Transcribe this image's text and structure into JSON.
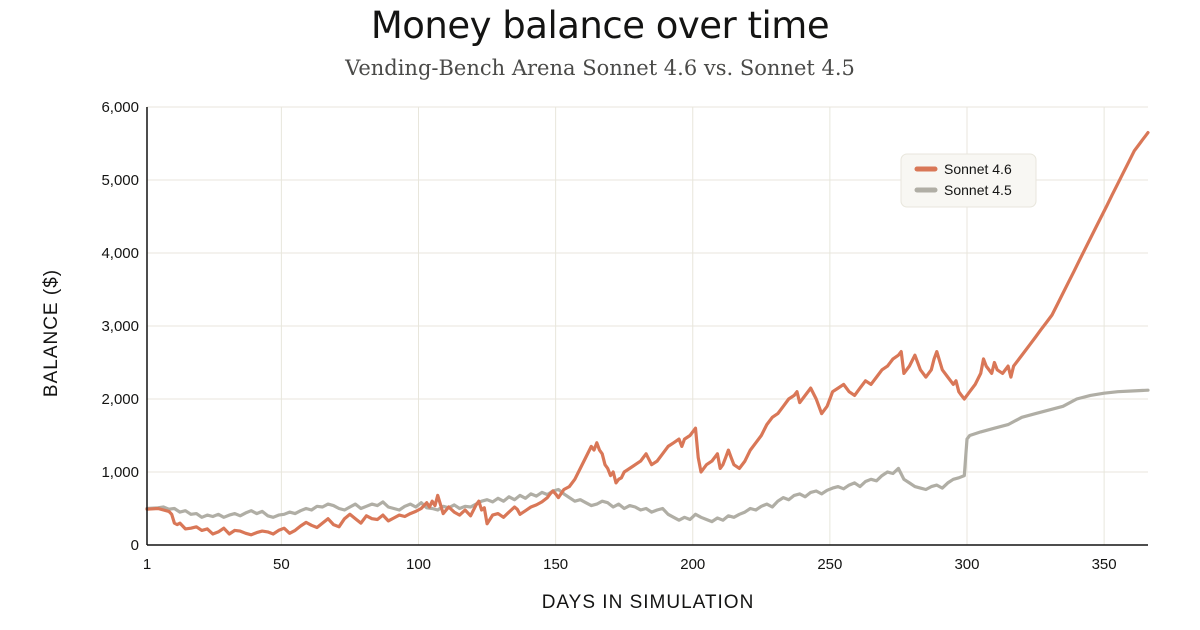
{
  "chart_data": {
    "type": "line",
    "title": "Money balance over time",
    "subtitle": "Vending-Bench Arena Sonnet 4.6 vs. Sonnet 4.5",
    "xlabel": "DAYS IN SIMULATION",
    "ylabel": "BALANCE ($)",
    "xlim": [
      1,
      366
    ],
    "ylim": [
      0,
      6000
    ],
    "x_ticks": [
      1,
      50,
      100,
      150,
      200,
      250,
      300,
      350
    ],
    "y_ticks": [
      0,
      1000,
      2000,
      3000,
      4000,
      5000,
      6000
    ],
    "y_tick_labels": [
      "0",
      "1,000",
      "2,000",
      "3,000",
      "4,000",
      "5,000",
      "6,000"
    ],
    "grid": true,
    "legend_position": "top-right",
    "series": [
      {
        "name": "Sonnet 4.6",
        "color": "#d97757",
        "x": [
          1,
          5,
          7,
          9,
          10,
          11,
          12,
          13,
          15,
          17,
          19,
          21,
          23,
          25,
          27,
          29,
          31,
          33,
          35,
          37,
          39,
          41,
          43,
          45,
          47,
          49,
          51,
          53,
          55,
          57,
          59,
          61,
          63,
          65,
          67,
          69,
          71,
          73,
          75,
          77,
          79,
          81,
          83,
          85,
          87,
          89,
          91,
          93,
          95,
          97,
          99,
          101,
          103,
          104,
          105,
          106,
          107,
          109,
          111,
          113,
          115,
          117,
          119,
          121,
          122,
          123,
          124,
          125,
          127,
          129,
          131,
          133,
          135,
          136,
          137,
          139,
          141,
          143,
          145,
          147,
          148,
          149,
          150,
          151,
          153,
          155,
          157,
          159,
          161,
          163,
          164,
          165,
          166,
          167,
          168,
          169,
          170,
          171,
          172,
          173,
          174,
          175,
          177,
          179,
          181,
          182,
          183,
          185,
          187,
          189,
          191,
          193,
          195,
          196,
          197,
          199,
          201,
          202,
          203,
          204,
          205,
          207,
          209,
          210,
          211,
          212,
          213,
          214,
          215,
          217,
          219,
          221,
          223,
          225,
          227,
          229,
          231,
          233,
          235,
          237,
          238,
          239,
          241,
          243,
          245,
          247,
          249,
          250,
          251,
          253,
          255,
          257,
          259,
          261,
          263,
          265,
          267,
          269,
          271,
          273,
          275,
          276,
          277,
          279,
          281,
          283,
          285,
          287,
          288,
          289,
          291,
          293,
          295,
          296,
          297,
          298,
          299,
          301,
          303,
          305,
          306,
          307,
          309,
          310,
          311,
          313,
          315,
          316,
          317,
          319,
          321,
          323,
          325,
          327,
          329,
          331,
          333,
          335,
          337,
          339,
          341,
          343,
          345,
          347,
          349,
          351,
          353,
          355,
          357,
          359,
          361,
          363,
          364,
          365,
          366
        ],
        "values": [
          490,
          500,
          480,
          460,
          420,
          300,
          280,
          300,
          220,
          230,
          250,
          200,
          220,
          150,
          180,
          230,
          150,
          200,
          190,
          160,
          140,
          170,
          190,
          180,
          150,
          200,
          230,
          160,
          200,
          260,
          310,
          270,
          240,
          300,
          360,
          280,
          250,
          360,
          420,
          360,
          300,
          400,
          360,
          350,
          410,
          330,
          370,
          410,
          390,
          430,
          460,
          500,
          580,
          520,
          600,
          540,
          680,
          430,
          520,
          450,
          410,
          480,
          400,
          550,
          600,
          480,
          510,
          290,
          410,
          430,
          380,
          450,
          520,
          490,
          420,
          470,
          520,
          550,
          590,
          650,
          700,
          740,
          700,
          650,
          760,
          800,
          900,
          1050,
          1200,
          1350,
          1300,
          1400,
          1300,
          1250,
          1100,
          1050,
          950,
          1000,
          850,
          900,
          920,
          1000,
          1050,
          1100,
          1150,
          1200,
          1250,
          1100,
          1150,
          1250,
          1350,
          1400,
          1450,
          1350,
          1450,
          1500,
          1600,
          1200,
          1000,
          1050,
          1100,
          1150,
          1250,
          1050,
          1100,
          1200,
          1300,
          1200,
          1100,
          1050,
          1150,
          1300,
          1400,
          1500,
          1650,
          1750,
          1800,
          1900,
          2000,
          2050,
          2100,
          1950,
          2050,
          2150,
          2000,
          1800,
          1900,
          2000,
          2100,
          2150,
          2200,
          2100,
          2050,
          2150,
          2250,
          2200,
          2300,
          2400,
          2450,
          2550,
          2600,
          2650,
          2350,
          2450,
          2600,
          2400,
          2300,
          2400,
          2550,
          2650,
          2400,
          2300,
          2200,
          2250,
          2100,
          2050,
          2000,
          2100,
          2200,
          2350,
          2550,
          2450,
          2350,
          2500,
          2400,
          2350,
          2450,
          2300,
          2450,
          2550,
          2650,
          2750,
          2850,
          2950,
          3050,
          3150,
          3300,
          3450,
          3600,
          3750,
          3900,
          4050,
          4200,
          4350,
          4500,
          4650,
          4800,
          4950,
          5100,
          5250,
          5400,
          5500,
          5550,
          5600,
          5650
        ]
      },
      {
        "name": "Sonnet 4.5",
        "color": "#b0aea5",
        "x": [
          1,
          5,
          7,
          9,
          11,
          13,
          15,
          17,
          19,
          21,
          23,
          25,
          27,
          29,
          31,
          33,
          35,
          37,
          39,
          41,
          43,
          45,
          47,
          49,
          51,
          53,
          55,
          57,
          59,
          61,
          63,
          65,
          67,
          69,
          71,
          73,
          75,
          77,
          79,
          81,
          83,
          85,
          87,
          89,
          91,
          93,
          95,
          97,
          99,
          101,
          103,
          105,
          107,
          109,
          111,
          113,
          115,
          117,
          119,
          121,
          123,
          125,
          127,
          129,
          131,
          133,
          135,
          137,
          139,
          141,
          143,
          145,
          147,
          149,
          151,
          153,
          155,
          157,
          159,
          161,
          163,
          165,
          167,
          169,
          171,
          173,
          175,
          177,
          179,
          181,
          183,
          185,
          187,
          189,
          191,
          193,
          195,
          197,
          199,
          201,
          203,
          205,
          207,
          209,
          211,
          213,
          215,
          217,
          219,
          221,
          223,
          225,
          227,
          229,
          231,
          233,
          235,
          237,
          239,
          241,
          243,
          245,
          247,
          249,
          251,
          253,
          255,
          257,
          259,
          261,
          263,
          265,
          267,
          269,
          271,
          273,
          275,
          277,
          279,
          281,
          283,
          285,
          287,
          289,
          291,
          293,
          295,
          297,
          299,
          300,
          301,
          305,
          310,
          315,
          320,
          325,
          330,
          335,
          340,
          345,
          350,
          355,
          360,
          366
        ],
        "values": [
          500,
          510,
          520,
          490,
          500,
          450,
          470,
          420,
          430,
          380,
          410,
          390,
          420,
          380,
          410,
          430,
          400,
          440,
          470,
          430,
          460,
          400,
          380,
          410,
          420,
          450,
          430,
          470,
          500,
          480,
          530,
          520,
          560,
          540,
          500,
          480,
          520,
          560,
          500,
          530,
          560,
          540,
          590,
          520,
          500,
          480,
          530,
          560,
          520,
          580,
          510,
          500,
          480,
          530,
          510,
          550,
          500,
          530,
          520,
          560,
          600,
          620,
          590,
          640,
          600,
          660,
          620,
          680,
          640,
          700,
          670,
          720,
          690,
          740,
          760,
          700,
          650,
          600,
          620,
          580,
          540,
          560,
          600,
          580,
          520,
          560,
          500,
          540,
          520,
          480,
          500,
          450,
          480,
          500,
          420,
          380,
          340,
          380,
          350,
          420,
          380,
          350,
          320,
          370,
          340,
          400,
          380,
          420,
          450,
          500,
          480,
          530,
          560,
          520,
          600,
          650,
          620,
          680,
          700,
          660,
          720,
          740,
          700,
          750,
          780,
          800,
          770,
          820,
          850,
          800,
          870,
          900,
          880,
          950,
          1000,
          980,
          1050,
          900,
          850,
          800,
          780,
          760,
          800,
          820,
          780,
          850,
          900,
          920,
          950,
          1450,
          1500,
          1550,
          1600,
          1650,
          1750,
          1800,
          1850,
          1900,
          2000,
          2050,
          2080,
          2100,
          2110,
          2120
        ]
      }
    ]
  }
}
